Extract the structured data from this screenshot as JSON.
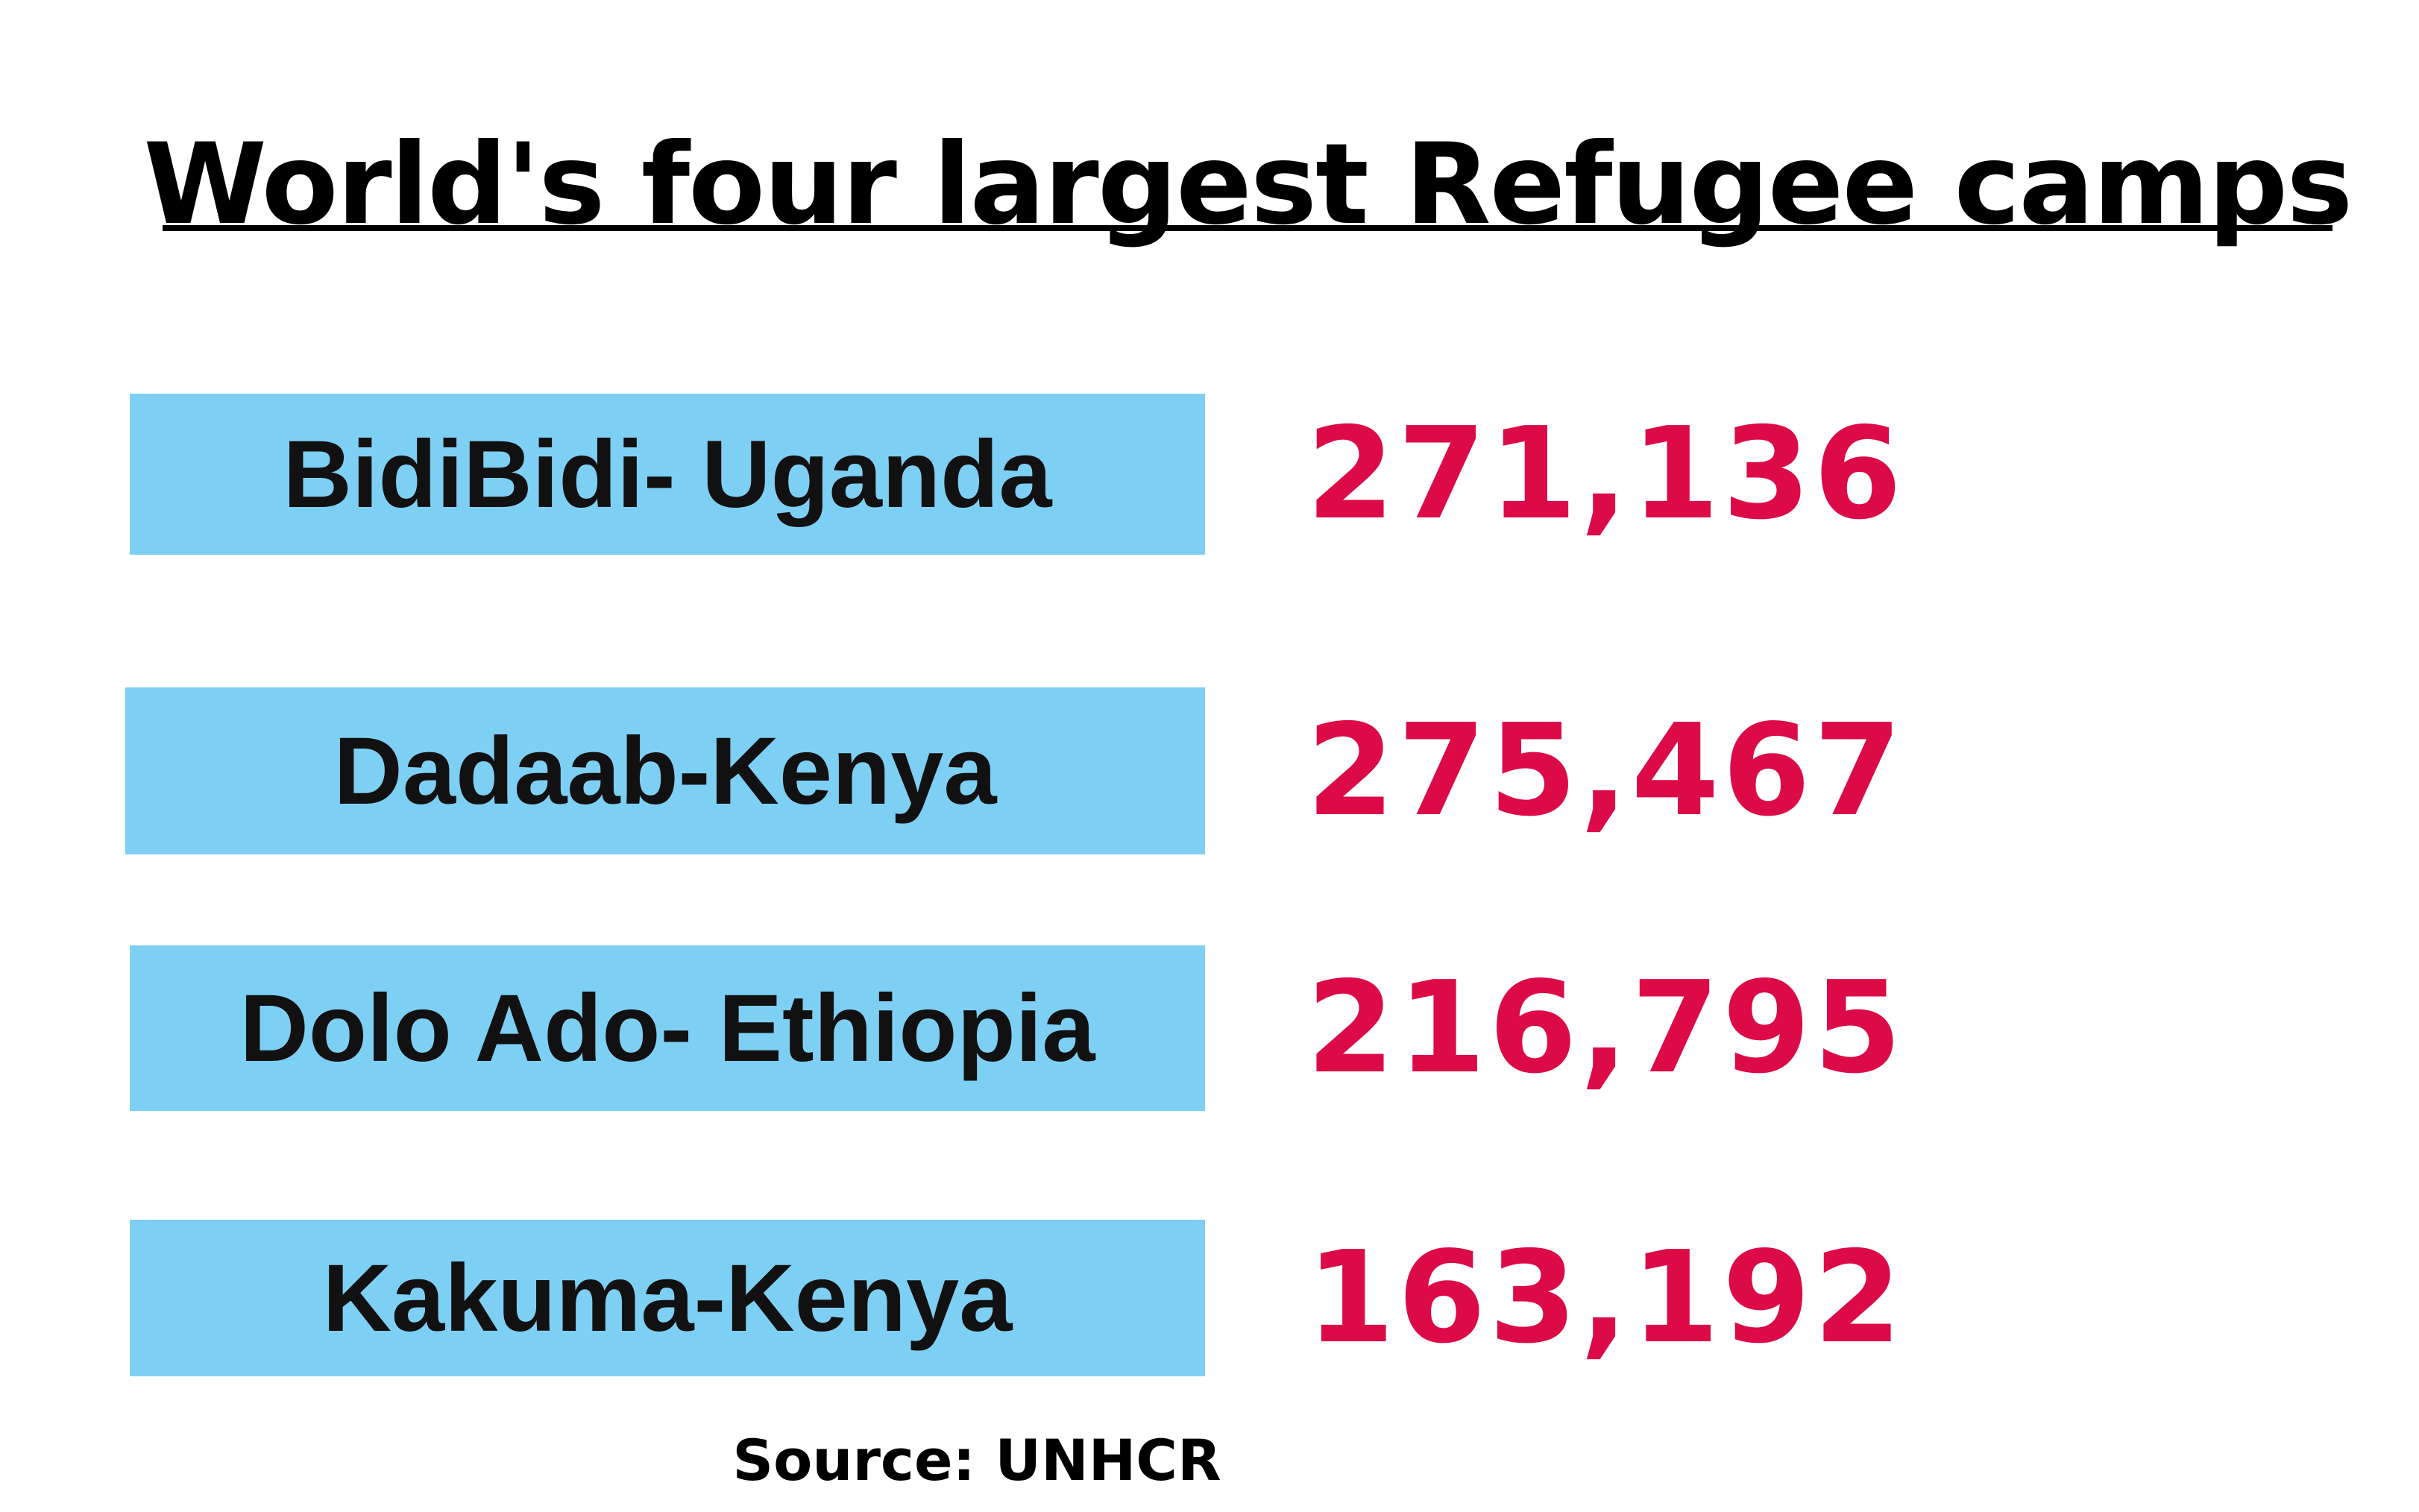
{
  "chart_data": {
    "type": "table",
    "title": "World's four largest Refugee camps",
    "categories": [
      "BidiBidi- Uganda",
      "Dadaab-Kenya",
      "Dolo Ado- Ethiopia",
      "Kakuma-Kenya"
    ],
    "values": [
      271136,
      275467,
      216795,
      163192
    ],
    "value_labels": [
      "271,136",
      "275,467",
      "216,795",
      "163,192"
    ],
    "source": "Source: UNHCR",
    "colors": {
      "label_fill": "#7ecff4",
      "label_text": "#111111",
      "value_text": "#dc0a46",
      "title_text": "#000000"
    }
  }
}
